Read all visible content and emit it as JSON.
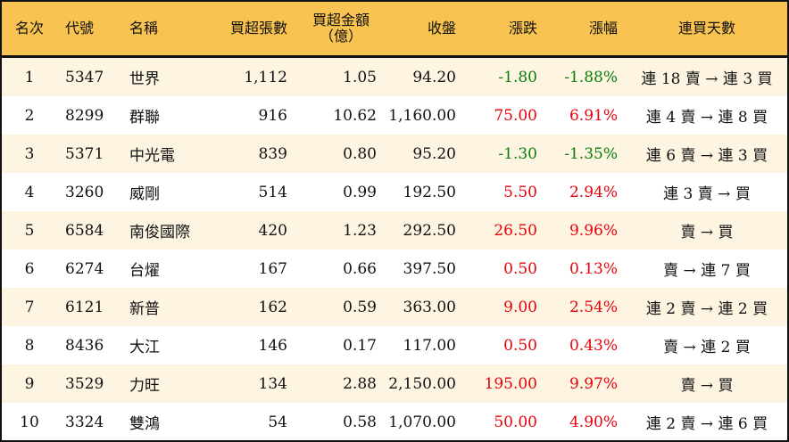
{
  "colors": {
    "header_bg": "#f8c350",
    "row_alt_bg": "#fdf5e2",
    "up": "#e8000b",
    "down": "#0a7d0a"
  },
  "headers": [
    "名次",
    "代號",
    "名稱",
    "買超張數",
    "買超金額\n（億）",
    "收盤",
    "漲跌",
    "漲幅",
    "連買天數"
  ],
  "header_amount_line1": "買超金額",
  "header_amount_line2": "（億）",
  "rows": [
    {
      "rank": "1",
      "code": "5347",
      "name": "世界",
      "shares": "1,112",
      "amount": "1.05",
      "close": "94.20",
      "change": "-1.80",
      "pct": "-1.88%",
      "streak": "連 18 賣 → 連 3 買",
      "dir": "down"
    },
    {
      "rank": "2",
      "code": "8299",
      "name": "群聯",
      "shares": "916",
      "amount": "10.62",
      "close": "1,160.00",
      "change": "75.00",
      "pct": "6.91%",
      "streak": "連 4 賣 → 連 8 買",
      "dir": "up"
    },
    {
      "rank": "3",
      "code": "5371",
      "name": "中光電",
      "shares": "839",
      "amount": "0.80",
      "close": "95.20",
      "change": "-1.30",
      "pct": "-1.35%",
      "streak": "連 6 賣 → 連 3 買",
      "dir": "down"
    },
    {
      "rank": "4",
      "code": "3260",
      "name": "威剛",
      "shares": "514",
      "amount": "0.99",
      "close": "192.50",
      "change": "5.50",
      "pct": "2.94%",
      "streak": "連 3 賣 → 買",
      "dir": "up"
    },
    {
      "rank": "5",
      "code": "6584",
      "name": "南俊國際",
      "shares": "420",
      "amount": "1.23",
      "close": "292.50",
      "change": "26.50",
      "pct": "9.96%",
      "streak": "賣 → 買",
      "dir": "up"
    },
    {
      "rank": "6",
      "code": "6274",
      "name": "台燿",
      "shares": "167",
      "amount": "0.66",
      "close": "397.50",
      "change": "0.50",
      "pct": "0.13%",
      "streak": "賣 → 連 7 買",
      "dir": "up"
    },
    {
      "rank": "7",
      "code": "6121",
      "name": "新普",
      "shares": "162",
      "amount": "0.59",
      "close": "363.00",
      "change": "9.00",
      "pct": "2.54%",
      "streak": "連 2 賣 → 連 2 買",
      "dir": "up"
    },
    {
      "rank": "8",
      "code": "8436",
      "name": "大江",
      "shares": "146",
      "amount": "0.17",
      "close": "117.00",
      "change": "0.50",
      "pct": "0.43%",
      "streak": "賣 → 連 2 買",
      "dir": "up"
    },
    {
      "rank": "9",
      "code": "3529",
      "name": "力旺",
      "shares": "134",
      "amount": "2.88",
      "close": "2,150.00",
      "change": "195.00",
      "pct": "9.97%",
      "streak": "賣 → 買",
      "dir": "up"
    },
    {
      "rank": "10",
      "code": "3324",
      "name": "雙鴻",
      "shares": "54",
      "amount": "0.58",
      "close": "1,070.00",
      "change": "50.00",
      "pct": "4.90%",
      "streak": "連 2 賣 → 連 6 買",
      "dir": "up"
    }
  ]
}
